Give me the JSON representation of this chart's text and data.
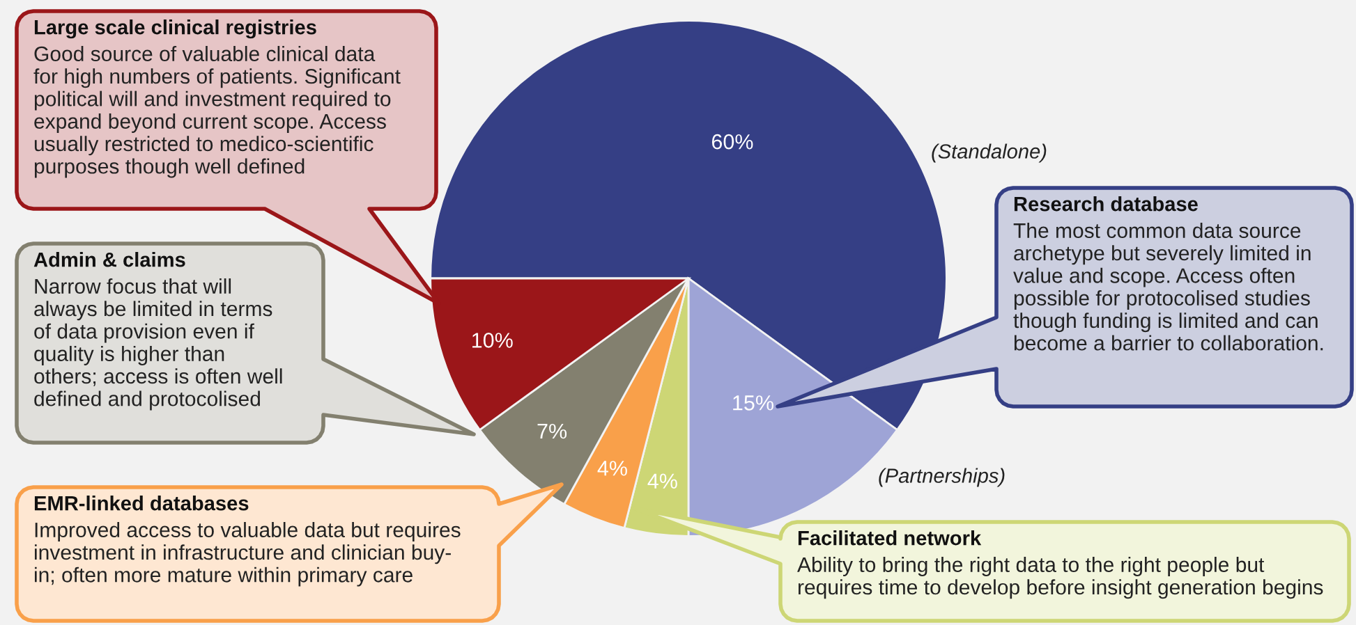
{
  "chart_data": {
    "type": "pie",
    "categories": [
      "(Standalone)",
      "(Partnerships)",
      null,
      null,
      null,
      null
    ],
    "values": [
      60,
      15,
      4,
      4,
      7,
      10
    ],
    "colors": [
      "#353f85",
      "#9ea4d6",
      "#cdd675",
      "#f9a04a",
      "#83806f",
      "#9b1619"
    ],
    "value_labels": [
      "60%",
      "15%",
      "4%",
      "4%",
      "7%",
      "10%"
    ],
    "annotations": [
      "Research database",
      "The most common data source\narchetype but severely limited in\nvalue and scope. Access often\npossible for protocolised studies\nthough funding is limited and can\nbecome a barrier to collaboration.",
      "Facilitated network",
      "Ability to bring the right data to the right people but\nrequires time to develop before insight generation begins",
      "EMR-linked databases",
      "Improved access to valuable data but requires\ninvestment in infrastructure and clinician buy-\nin; often more mature within primary care",
      "Admin & claims",
      "Narrow focus that will\nalways be limited in terms\nof data provision even if\nquality is higher than\nothers; access is often well\ndefined and protocolised",
      "Large scale clinical registries",
      "Good source of valuable clinical data\nfor high numbers of patients. Significant\npolitical will and investment required to\nexpand beyond current scope. Access\nusually restricted to medico-scientific\npurposes though well defined"
    ]
  }
}
